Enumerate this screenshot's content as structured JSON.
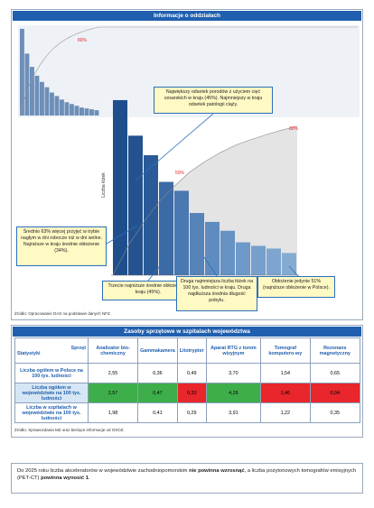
{
  "panel1": {
    "title": "Informacje o oddziałach",
    "inset": {
      "type": "bar",
      "values": [
        98,
        70,
        55,
        45,
        38,
        32,
        26,
        22,
        18,
        15,
        13,
        11,
        9,
        8,
        7,
        6
      ],
      "ylim": [
        0,
        100
      ],
      "color": "#6d8fb8",
      "line_label": "80%"
    },
    "chart": {
      "type": "bar",
      "y_label": "Liczba łóżek",
      "values": [
        197,
        157,
        135,
        105,
        95,
        70,
        60,
        50,
        37,
        33,
        30,
        25
      ],
      "ylim": [
        0,
        200
      ],
      "colors": [
        "#1f4e8c",
        "#23528f",
        "#2a5b98",
        "#3c6aa5",
        "#4a78b0",
        "#5683b8",
        "#5f8cc0",
        "#6692c4",
        "#6e99c8",
        "#769fcc",
        "#7da5cf",
        "#84abd2"
      ],
      "markers": [
        "50%",
        "80%"
      ]
    },
    "annotations": [
      "Największy odsetek porodów z użyciem cięć cesarskich w kraju (45%). Najmniejszy w kraju odsetek patologii ciąży.",
      "Średnio 63% więcej przyjęć w trybie nagłym w dni robocze niż w dni wolne. Najniższe w kraju średnie obłożenie (34%).",
      "Trzecie najniższe średnie obłożenie w kraju (45%).",
      "Druga najmniejsza liczba łóżek na 100 tys. ludności w kraju. Druga najdłuższa średnia długość pobytu.",
      "Obłożenie jedynie 51% (najniższe obłożenie w Polsce)."
    ],
    "source": "Źródło: Opracowanie DAS na podstawie danych NFZ."
  },
  "panel2": {
    "title": "Zasoby sprzętowe w szpitalach województwa",
    "table": {
      "corner_top": "Sprzęt",
      "corner_bottom": "Statystyki",
      "columns": [
        "Analizator bio-chemiczny",
        "Gammakamera",
        "Litotrypter",
        "Aparat RTG z torem wizyjnym",
        "Tomograf komputero-wy",
        "Rezonans magnetyczny"
      ],
      "rows": [
        {
          "label": "Liczba ogółem w Polsce na 100 tys. ludności",
          "cells": [
            "2,55",
            "0,36",
            "0,49",
            "3,70",
            "1,54",
            "0,65"
          ]
        },
        {
          "label": "Liczba ogółem w województwie na 100 tys. ludności",
          "cells": [
            "2,57",
            "0,47",
            "0,33",
            "4,26",
            "1,46",
            "0,04"
          ],
          "cell_colors": [
            "#3dae49",
            "#3dae49",
            "#e8262b",
            "#3dae49",
            "#e8262b",
            "#e8262b"
          ]
        },
        {
          "label": "Liczba w szpitalach w województwie na 100 tys. ludności",
          "cells": [
            "1,98",
            "0,41",
            "0,29",
            "3,91",
            "1,22",
            "0,35"
          ]
        }
      ]
    },
    "source": "Źródło: Sprawozdania MZ oraz bieżące informacje od OSOZ."
  },
  "panel3": {
    "text": [
      "Do 2025 roku liczba akceleratorów w województwie zachodniopomorskim ",
      "nie powinna wzrosnąć",
      ", a liczba pozytonowych tomografów emisyjnych (PET-CT) ",
      "powinna wynosić 1",
      "."
    ]
  }
}
